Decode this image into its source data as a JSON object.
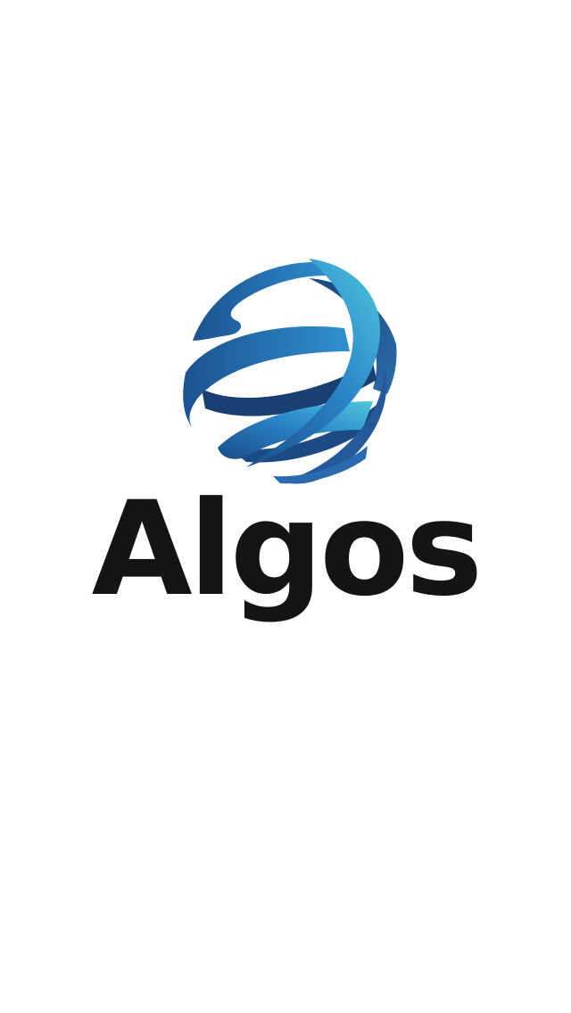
{
  "app": {
    "name": "Algos"
  },
  "logo": {
    "icon": "globe-icon",
    "colors": {
      "light_blue": "#4dc3dc",
      "mid_blue": "#2a7fc2",
      "dark_blue": "#1d4f8c",
      "wordmark": "#141414",
      "background": "#ffffff"
    }
  }
}
